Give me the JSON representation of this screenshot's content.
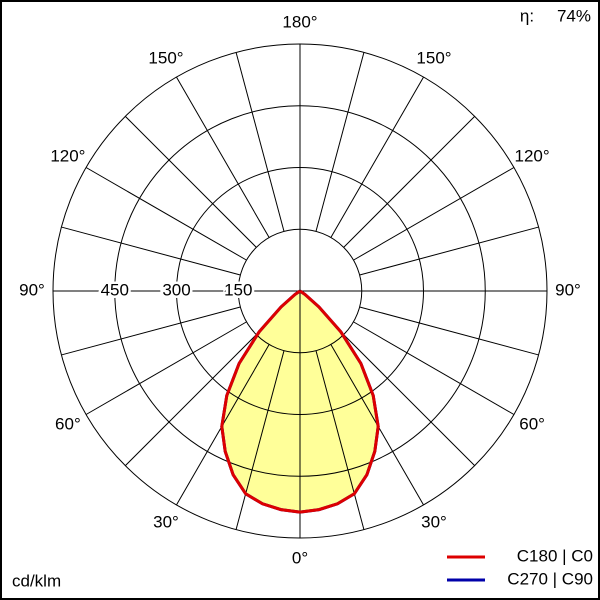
{
  "chart_data": {
    "type": "polar",
    "efficiency_label": "η:",
    "efficiency": "74%",
    "unit": "cd/klm",
    "angle_ticks": [
      {
        "value": 0,
        "label": "0°"
      },
      {
        "value": 30,
        "label": "30°"
      },
      {
        "value": 60,
        "label": "60°"
      },
      {
        "value": 90,
        "label": "90°"
      },
      {
        "value": 120,
        "label": "120°"
      },
      {
        "value": 150,
        "label": "150°"
      },
      {
        "value": 180,
        "label": "180°"
      }
    ],
    "rlim": [
      0,
      600
    ],
    "rticks": [
      150,
      300,
      450
    ],
    "x": [
      0,
      5,
      10,
      15,
      20,
      25,
      30,
      35,
      40,
      45,
      50,
      55,
      60,
      65,
      70,
      75,
      80,
      85,
      90
    ],
    "series": [
      {
        "name": "C270 | C90",
        "color": "#0000aa",
        "values": [
          537,
          533,
          525,
          510,
          475,
          430,
          380,
          310,
          230,
          140,
          60,
          15,
          0,
          0,
          0,
          0,
          0,
          0,
          0
        ]
      },
      {
        "name": "C180 | C0",
        "color": "#dd0000",
        "values": [
          537,
          533,
          525,
          510,
          475,
          430,
          380,
          310,
          230,
          140,
          60,
          15,
          0,
          0,
          0,
          0,
          0,
          0,
          0
        ]
      }
    ],
    "fill": "#ffff99"
  }
}
